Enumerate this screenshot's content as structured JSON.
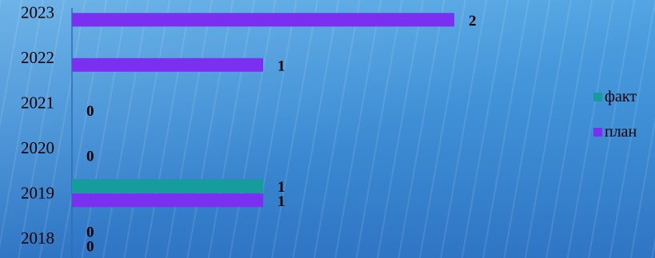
{
  "chart_data": {
    "type": "bar",
    "orientation": "horizontal",
    "categories": [
      "2018",
      "2019",
      "2020",
      "2021",
      "2022",
      "2023"
    ],
    "series": [
      {
        "name": "факт",
        "color": "#169c9a",
        "values": [
          0,
          1,
          null,
          null,
          null,
          null
        ],
        "value_labels": [
          "0",
          "1",
          "",
          "",
          "",
          ""
        ]
      },
      {
        "name": "план",
        "color": "#7b2ff0",
        "values": [
          0,
          1,
          0,
          0,
          1,
          2
        ],
        "value_labels": [
          "0",
          "1",
          "0",
          "0",
          "1",
          "2"
        ]
      }
    ],
    "xlim": [
      0,
      2
    ],
    "grid": false,
    "legend_position": "right"
  }
}
